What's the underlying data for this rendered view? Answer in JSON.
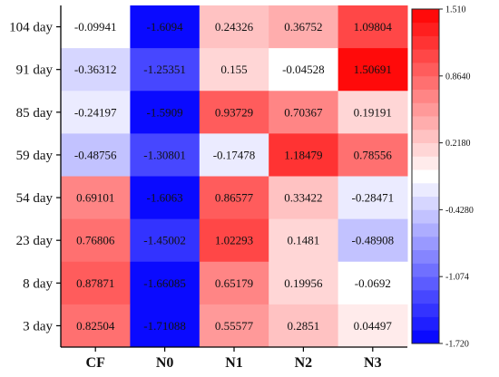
{
  "chart_data": {
    "type": "heatmap",
    "title": "",
    "xlabel": "",
    "ylabel": "",
    "columns": [
      "CF",
      "N0",
      "N1",
      "N2",
      "N3"
    ],
    "rows": [
      "104 day",
      "91 day",
      "85 day",
      "59 day",
      "54 day",
      "23 day",
      "8 day",
      "3 day"
    ],
    "values": [
      [
        -0.09941,
        -1.6094,
        0.24326,
        0.36752,
        1.09804
      ],
      [
        -0.36312,
        -1.25351,
        0.155,
        -0.04528,
        1.50691
      ],
      [
        -0.24197,
        -1.5909,
        0.93729,
        0.70367,
        0.19191
      ],
      [
        -0.48756,
        -1.30801,
        -0.17478,
        1.18479,
        0.78556
      ],
      [
        0.69101,
        -1.6063,
        0.86577,
        0.33422,
        -0.28471
      ],
      [
        0.76806,
        -1.45002,
        1.02293,
        0.1481,
        -0.48908
      ],
      [
        0.87871,
        -1.66085,
        0.65179,
        0.19956,
        -0.0692
      ],
      [
        0.82504,
        -1.71088,
        0.55577,
        0.2851,
        0.04497
      ]
    ],
    "value_labels": [
      [
        "-0.09941",
        "-1.6094",
        "0.24326",
        "0.36752",
        "1.09804"
      ],
      [
        "-0.36312",
        "-1.25351",
        "0.155",
        "-0.04528",
        "1.50691"
      ],
      [
        "-0.24197",
        "-1.5909",
        "0.93729",
        "0.70367",
        "0.19191"
      ],
      [
        "-0.48756",
        "-1.30801",
        "-0.17478",
        "1.18479",
        "0.78556"
      ],
      [
        "0.69101",
        "-1.6063",
        "0.86577",
        "0.33422",
        "-0.28471"
      ],
      [
        "0.76806",
        "-1.45002",
        "1.02293",
        "0.1481",
        "-0.48908"
      ],
      [
        "0.87871",
        "-1.66085",
        "0.65179",
        "0.19956",
        "-0.0692"
      ],
      [
        "0.82504",
        "-1.71088",
        "0.55577",
        "0.2851",
        "0.04497"
      ]
    ],
    "colorbar": {
      "min": -1.72,
      "max": 1.51,
      "steps": 25,
      "ticks": [
        {
          "value": 1.51,
          "label": "1.510"
        },
        {
          "value": 0.864,
          "label": "0.8640"
        },
        {
          "value": 0.218,
          "label": "0.2180"
        },
        {
          "value": -0.428,
          "label": "-0.4280"
        },
        {
          "value": -1.074,
          "label": "-1.074"
        },
        {
          "value": -1.72,
          "label": "-1.720"
        }
      ],
      "low_color": "#0000ff",
      "mid_color": "#ffffff",
      "high_color": "#ff0000"
    }
  }
}
